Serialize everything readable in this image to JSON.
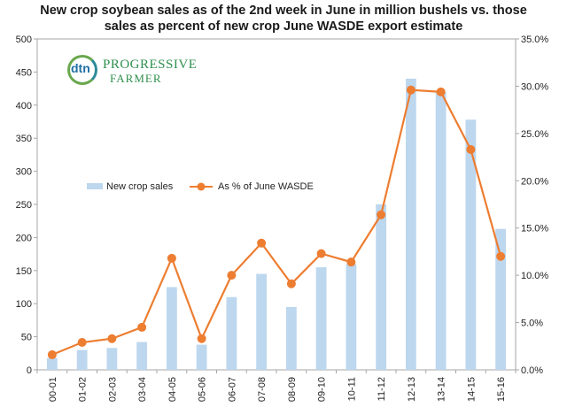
{
  "chart_data": {
    "type": "bar",
    "title_line1": "New crop soybean sales as of the 2nd week in June in million bushels vs. those",
    "title_line2": "sales as percent of new crop June WASDE export estimate",
    "categories": [
      "00-01",
      "01-02",
      "02-03",
      "03-04",
      "04-05",
      "05-06",
      "06-07",
      "07-08",
      "08-09",
      "09-10",
      "10-11",
      "11-12",
      "12-13",
      "13-14",
      "14-15",
      "15-16"
    ],
    "series": [
      {
        "name": "New crop sales",
        "type": "bar",
        "axis": "left",
        "values": [
          18,
          30,
          33,
          42,
          125,
          38,
          110,
          145,
          95,
          155,
          160,
          250,
          440,
          420,
          378,
          213
        ]
      },
      {
        "name": "As % of June WASDE",
        "type": "line",
        "axis": "right",
        "values": [
          1.6,
          2.9,
          3.3,
          4.5,
          11.8,
          3.3,
          10.0,
          13.4,
          9.1,
          12.3,
          11.4,
          16.4,
          29.6,
          29.4,
          23.3,
          12.0
        ]
      }
    ],
    "y_left": {
      "min": 0,
      "max": 500,
      "step": 50
    },
    "y_right": {
      "min": 0,
      "max": 35,
      "step": 5
    },
    "y_left_ticks": [
      "0",
      "50",
      "100",
      "150",
      "200",
      "250",
      "300",
      "350",
      "400",
      "450",
      "500"
    ],
    "y_right_ticks": [
      "0.0%",
      "5.0%",
      "10.0%",
      "15.0%",
      "20.0%",
      "25.0%",
      "30.0%",
      "35.0%"
    ],
    "legend_position": "middle-left",
    "colors": {
      "bar": "#bdd7ee",
      "line": "#ed7d31",
      "axis": "#a6a6a6"
    }
  },
  "logo": {
    "mark": "dtn",
    "name_line1": "PROGRESSIVE",
    "name_line2": "FARMER"
  }
}
